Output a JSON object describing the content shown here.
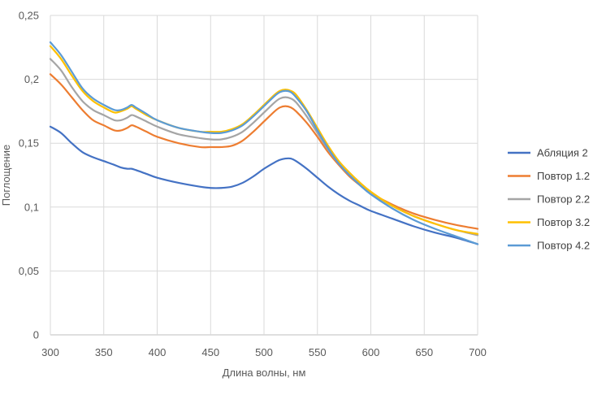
{
  "chart_data": {
    "type": "line",
    "title": "",
    "xlabel": "Длина волны, нм",
    "ylabel": "Поглощение",
    "xlim": [
      300,
      700
    ],
    "ylim": [
      0,
      0.25
    ],
    "x_ticks": [
      "300",
      "350",
      "400",
      "450",
      "500",
      "550",
      "600",
      "650",
      "700"
    ],
    "y_ticks": [
      "0",
      "0,05",
      "0,1",
      "0,15",
      "0,2",
      "0,25"
    ],
    "grid": "vertical and horizontal",
    "legend_position": "right",
    "x": [
      300,
      310,
      320,
      330,
      340,
      350,
      360,
      366,
      372,
      376,
      380,
      390,
      400,
      420,
      440,
      450,
      460,
      470,
      480,
      490,
      500,
      510,
      515,
      520,
      525,
      530,
      540,
      550,
      560,
      570,
      580,
      590,
      600,
      620,
      640,
      660,
      680,
      700
    ],
    "series": [
      {
        "name": "Абляция 2",
        "color": "#4472c4",
        "values": [
          0.163,
          0.158,
          0.15,
          0.143,
          0.139,
          0.136,
          0.133,
          0.131,
          0.13,
          0.13,
          0.129,
          0.126,
          0.123,
          0.119,
          0.116,
          0.115,
          0.115,
          0.116,
          0.119,
          0.124,
          0.13,
          0.135,
          0.137,
          0.138,
          0.138,
          0.136,
          0.13,
          0.123,
          0.116,
          0.11,
          0.105,
          0.101,
          0.097,
          0.091,
          0.085,
          0.08,
          0.076,
          0.071
        ]
      },
      {
        "name": "Повтор 1.2",
        "color": "#ed7d31",
        "values": [
          0.204,
          0.196,
          0.186,
          0.176,
          0.168,
          0.164,
          0.16,
          0.16,
          0.162,
          0.164,
          0.163,
          0.159,
          0.155,
          0.15,
          0.147,
          0.147,
          0.147,
          0.148,
          0.152,
          0.159,
          0.167,
          0.175,
          0.178,
          0.179,
          0.178,
          0.175,
          0.166,
          0.155,
          0.143,
          0.133,
          0.124,
          0.117,
          0.111,
          0.102,
          0.095,
          0.09,
          0.086,
          0.083
        ]
      },
      {
        "name": "Повтор 2.2",
        "color": "#a5a5a5",
        "values": [
          0.216,
          0.207,
          0.194,
          0.183,
          0.176,
          0.172,
          0.168,
          0.168,
          0.17,
          0.172,
          0.171,
          0.167,
          0.163,
          0.157,
          0.154,
          0.153,
          0.153,
          0.155,
          0.159,
          0.166,
          0.174,
          0.182,
          0.185,
          0.186,
          0.185,
          0.182,
          0.171,
          0.158,
          0.145,
          0.134,
          0.125,
          0.118,
          0.111,
          0.101,
          0.093,
          0.087,
          0.082,
          0.078
        ]
      },
      {
        "name": "Повтор 3.2",
        "color": "#ffc000",
        "values": [
          0.226,
          0.216,
          0.203,
          0.191,
          0.183,
          0.178,
          0.174,
          0.175,
          0.177,
          0.179,
          0.177,
          0.172,
          0.168,
          0.162,
          0.159,
          0.159,
          0.159,
          0.161,
          0.165,
          0.172,
          0.18,
          0.188,
          0.191,
          0.192,
          0.191,
          0.188,
          0.176,
          0.162,
          0.148,
          0.136,
          0.127,
          0.119,
          0.112,
          0.101,
          0.093,
          0.087,
          0.082,
          0.079
        ]
      },
      {
        "name": "Повтор 4.2",
        "color": "#5b9bd5",
        "values": [
          0.229,
          0.219,
          0.206,
          0.193,
          0.185,
          0.18,
          0.176,
          0.176,
          0.178,
          0.18,
          0.178,
          0.173,
          0.168,
          0.162,
          0.159,
          0.158,
          0.158,
          0.16,
          0.164,
          0.171,
          0.179,
          0.187,
          0.19,
          0.191,
          0.19,
          0.186,
          0.175,
          0.16,
          0.146,
          0.134,
          0.125,
          0.117,
          0.11,
          0.099,
          0.09,
          0.083,
          0.077,
          0.071
        ]
      }
    ]
  }
}
